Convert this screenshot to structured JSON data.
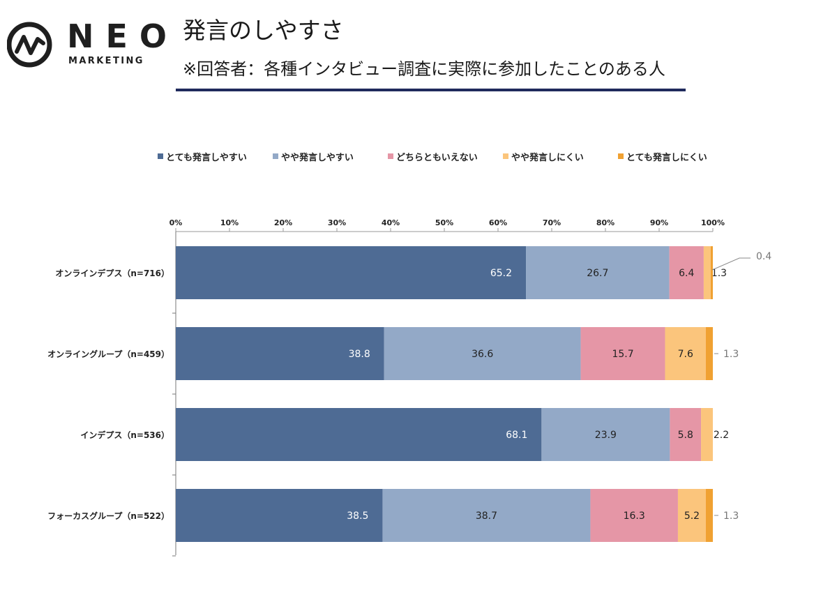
{
  "logo": {
    "word": "NEO",
    "sub": "MARKETING"
  },
  "header": {
    "title": "発言のしやすさ",
    "subtitle": "※回答者：各種インタビュー調査に実際に参加したことのある人"
  },
  "colors": [
    "#4e6b94",
    "#93a9c7",
    "#e596a6",
    "#fbc57c",
    "#f0a132"
  ],
  "chart_data": {
    "type": "bar",
    "orientation": "horizontal",
    "stacked": true,
    "xlim": [
      0,
      100
    ],
    "x_ticks": [
      "0%",
      "10%",
      "20%",
      "30%",
      "40%",
      "50%",
      "60%",
      "70%",
      "80%",
      "90%",
      "100%"
    ],
    "legend_position": "top",
    "categories": [
      "オンラインデプス（n=716）",
      "オンライングループ（n=459）",
      "インデプス（n=536）",
      "フォーカスグループ（n=522）"
    ],
    "series": [
      {
        "name": "とても発言しやすい",
        "values": [
          65.2,
          38.8,
          68.1,
          38.5
        ],
        "labels": [
          "65.2",
          "38.8",
          "68.1",
          "38.5"
        ]
      },
      {
        "name": "やや発言しやすい",
        "values": [
          26.7,
          36.6,
          23.9,
          38.7
        ],
        "labels": [
          "26.7",
          "36.6",
          "23.9",
          "38.7"
        ]
      },
      {
        "name": "どちらともいえない",
        "values": [
          6.4,
          15.7,
          5.8,
          16.3
        ],
        "labels": [
          "6.4",
          "15.7",
          "5.8",
          "16.3"
        ]
      },
      {
        "name": "やや発言しにくい",
        "values": [
          1.3,
          7.6,
          2.2,
          5.2
        ],
        "labels": [
          "1.3",
          "7.6",
          "2.2",
          "5.2"
        ]
      },
      {
        "name": "とても発言しにくい",
        "values": [
          0.4,
          1.3,
          0.0,
          1.3
        ],
        "labels": [
          "0.4",
          "1.3",
          "",
          "1.3"
        ]
      }
    ]
  }
}
